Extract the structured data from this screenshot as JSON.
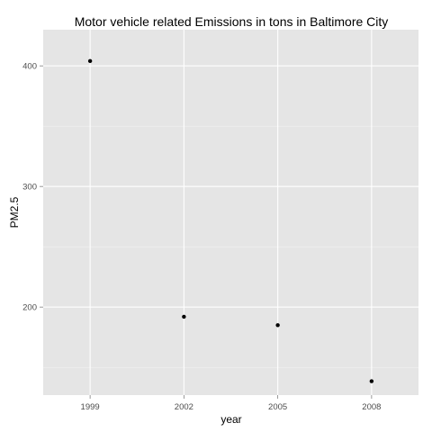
{
  "chart_data": {
    "type": "scatter",
    "title": "Motor vehicle related Emissions in tons in Baltimore City",
    "xlabel": "year",
    "ylabel": "PM2.5",
    "x_categories": [
      "1999",
      "2002",
      "2005",
      "2008"
    ],
    "points": [
      {
        "x": "1999",
        "y": 404
      },
      {
        "x": "2002",
        "y": 192
      },
      {
        "x": "2005",
        "y": 185
      },
      {
        "x": "2008",
        "y": 138.5
      }
    ],
    "ylim": [
      127,
      430
    ],
    "yticks": [
      200,
      300,
      400
    ],
    "ytick_labels": [
      "200",
      "300",
      "400"
    ],
    "grid": true,
    "colors": {
      "panel_background": "#e5e5e5",
      "grid_major": "#ffffff",
      "grid_minor": "#f2f2f2",
      "point": "#000000",
      "tick_text": "#4d4d4d"
    }
  }
}
